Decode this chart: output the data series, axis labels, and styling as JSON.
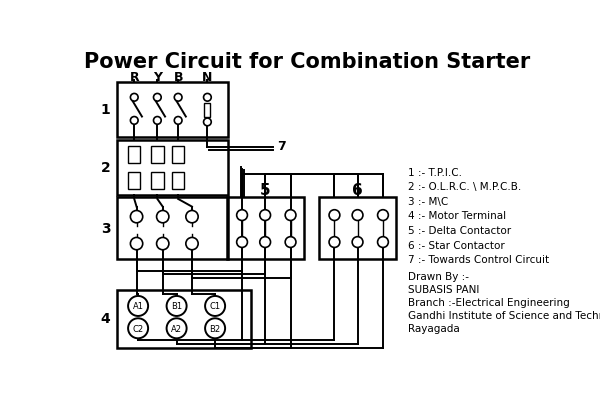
{
  "title": "Power Circuit for Combination Starter",
  "bg_color": "#ffffff",
  "line_color": "#000000",
  "title_fontsize": 15,
  "legend_items": [
    "1 :- T.P.I.C.",
    "2 :- O.L.R.C. \\ M.P.C.B.",
    "3 :- M\\C",
    "4 :- Motor Terminal",
    "5 :- Delta Contactor",
    "6 :- Star Contactor",
    "7 :- Towards Control Circuit"
  ],
  "credit_lines": [
    "Drawn By :-",
    "SUBASIS PANI",
    "Branch :-Electrical Engineering",
    "Gandhi Institute of Science and Technology",
    "Rayagada"
  ],
  "phase_labels": [
    "R",
    "Y",
    "B",
    "N"
  ],
  "mt_labels_top": [
    "A1",
    "B1",
    "C1"
  ],
  "mt_labels_bot": [
    "C2",
    "A2",
    "B2"
  ]
}
